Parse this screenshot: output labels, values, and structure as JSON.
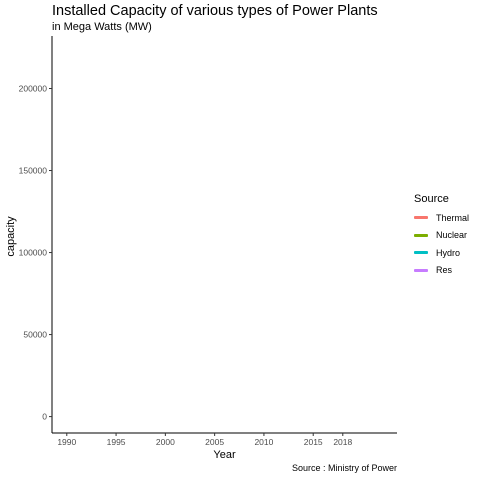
{
  "chart_data": {
    "type": "line",
    "title": "Installed Capacity of various types of Power Plants",
    "subtitle": "in Mega Watts (MW)",
    "caption": "Source : Ministry of Power",
    "xlabel": "Year",
    "ylabel": "capacity",
    "xlim": [
      1988.5,
      2023.5
    ],
    "ylim": [
      -10000,
      232000
    ],
    "x_ticks": [
      1990,
      1995,
      2000,
      2005,
      2010,
      2015,
      2018
    ],
    "y_ticks": [
      0,
      50000,
      100000,
      150000,
      200000
    ],
    "legend": {
      "title": "Source",
      "position": "right"
    },
    "series": [
      {
        "name": "Thermal",
        "color": "#F8766D",
        "values": []
      },
      {
        "name": "Nuclear",
        "color": "#7CAE00",
        "values": []
      },
      {
        "name": "Hydro",
        "color": "#00BFC4",
        "values": []
      },
      {
        "name": "Res",
        "color": "#C77CFF",
        "values": []
      }
    ],
    "grid": false
  }
}
